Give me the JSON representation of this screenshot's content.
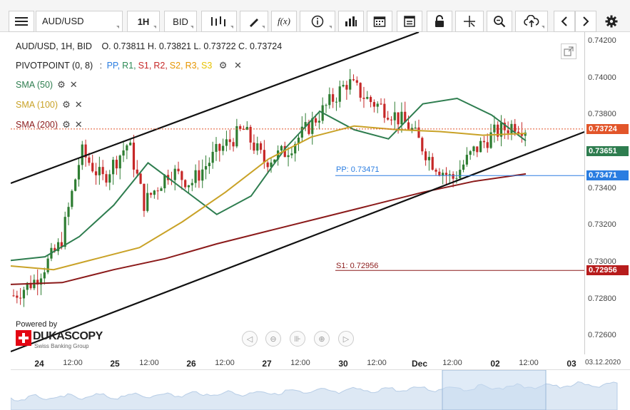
{
  "toolbar": {
    "symbol": "AUD/USD",
    "timeframe": "1H",
    "price_type": "BID",
    "buttons": [
      "menu-icon",
      "bar-style-icon",
      "draw-icon",
      "function-icon",
      "info-icon",
      "indicators-icon",
      "calendar-icon",
      "report-icon",
      "lock-icon",
      "crosshair-icon",
      "zoom-icon",
      "cloud-upload-icon",
      "prev-icon",
      "next-icon",
      "settings-icon"
    ]
  },
  "legend": {
    "header": "AUD/USD, 1H, BID",
    "ohlc": "O. 0.73811  H. 0.73821  L. 0.73722  C. 0.73724",
    "pivot_name": "PIVOTPOINT (0, 8)",
    "pivot_items": [
      {
        "label": "PP,",
        "color": "#2a7de1"
      },
      {
        "label": "R1,",
        "color": "#2e8b57"
      },
      {
        "label": "S1,",
        "color": "#c62828"
      },
      {
        "label": "R2,",
        "color": "#c62828"
      },
      {
        "label": "S2,",
        "color": "#e69500"
      },
      {
        "label": "R3,",
        "color": "#e69500"
      },
      {
        "label": "S3",
        "color": "#e6c200"
      }
    ],
    "sma": [
      {
        "label": "SMA (50)",
        "color": "#2e7d4f"
      },
      {
        "label": "SMA (100)",
        "color": "#c9a227"
      },
      {
        "label": "SMA (200)",
        "color": "#8b1a1a"
      }
    ]
  },
  "levels": {
    "pp_label": "PP: 0.73471",
    "s1_label": "S1: 0.72956"
  },
  "price_axis": {
    "ticks": [
      "0.74200",
      "0.74000",
      "0.73800",
      "0.73600",
      "0.73400",
      "0.73200",
      "0.73000",
      "0.72800",
      "0.72600"
    ],
    "tags": [
      {
        "value": "0.73724",
        "color": "#e2552a"
      },
      {
        "value": "0.73651",
        "color": "#2e7d4f"
      },
      {
        "value": "0.73471",
        "color": "#2a7de1"
      },
      {
        "value": "0.72956",
        "color": "#b71c1c"
      }
    ]
  },
  "time_axis": {
    "labels": [
      {
        "text": "24",
        "big": true
      },
      {
        "text": "12:00",
        "big": false
      },
      {
        "text": "25",
        "big": true
      },
      {
        "text": "12:00",
        "big": false
      },
      {
        "text": "26",
        "big": true
      },
      {
        "text": "12:00",
        "big": false
      },
      {
        "text": "27",
        "big": true
      },
      {
        "text": "12:00",
        "big": false
      },
      {
        "text": "30",
        "big": true
      },
      {
        "text": "12:00",
        "big": false
      },
      {
        "text": "Dec",
        "big": true
      },
      {
        "text": "12:00",
        "big": false
      },
      {
        "text": "02",
        "big": true
      },
      {
        "text": "12:00",
        "big": false
      },
      {
        "text": "03",
        "big": true
      }
    ],
    "date_label": "03.12.2020"
  },
  "branding": {
    "powered": "Powered by",
    "brand": "DUKASCOPY",
    "sub": "Swiss Banking Group"
  },
  "chart_data": {
    "type": "candlestick",
    "title": "AUD/USD, 1H, BID",
    "ylim": [
      0.725,
      0.7425
    ],
    "series": [
      {
        "name": "SMA (50)",
        "values": [
          0.7301,
          0.7303,
          0.7314,
          0.7331,
          0.7354,
          0.734,
          0.7326,
          0.7336,
          0.7362,
          0.7382,
          0.7372,
          0.7367,
          0.7386,
          0.7389,
          0.738,
          0.7366
        ]
      },
      {
        "name": "SMA (100)",
        "values": [
          0.7298,
          0.7296,
          0.7302,
          0.7308,
          0.7322,
          0.7338,
          0.7356,
          0.7368,
          0.7374,
          0.7372,
          0.7371,
          0.7369,
          0.737
        ]
      },
      {
        "name": "SMA (200)",
        "values": [
          0.7288,
          0.7289,
          0.7296,
          0.7302,
          0.731,
          0.7317,
          0.7324,
          0.7331,
          0.7338,
          0.7344,
          0.7348
        ]
      }
    ],
    "levels": {
      "PP": 0.73471,
      "S1": 0.72956
    },
    "last_close": 0.73724
  }
}
